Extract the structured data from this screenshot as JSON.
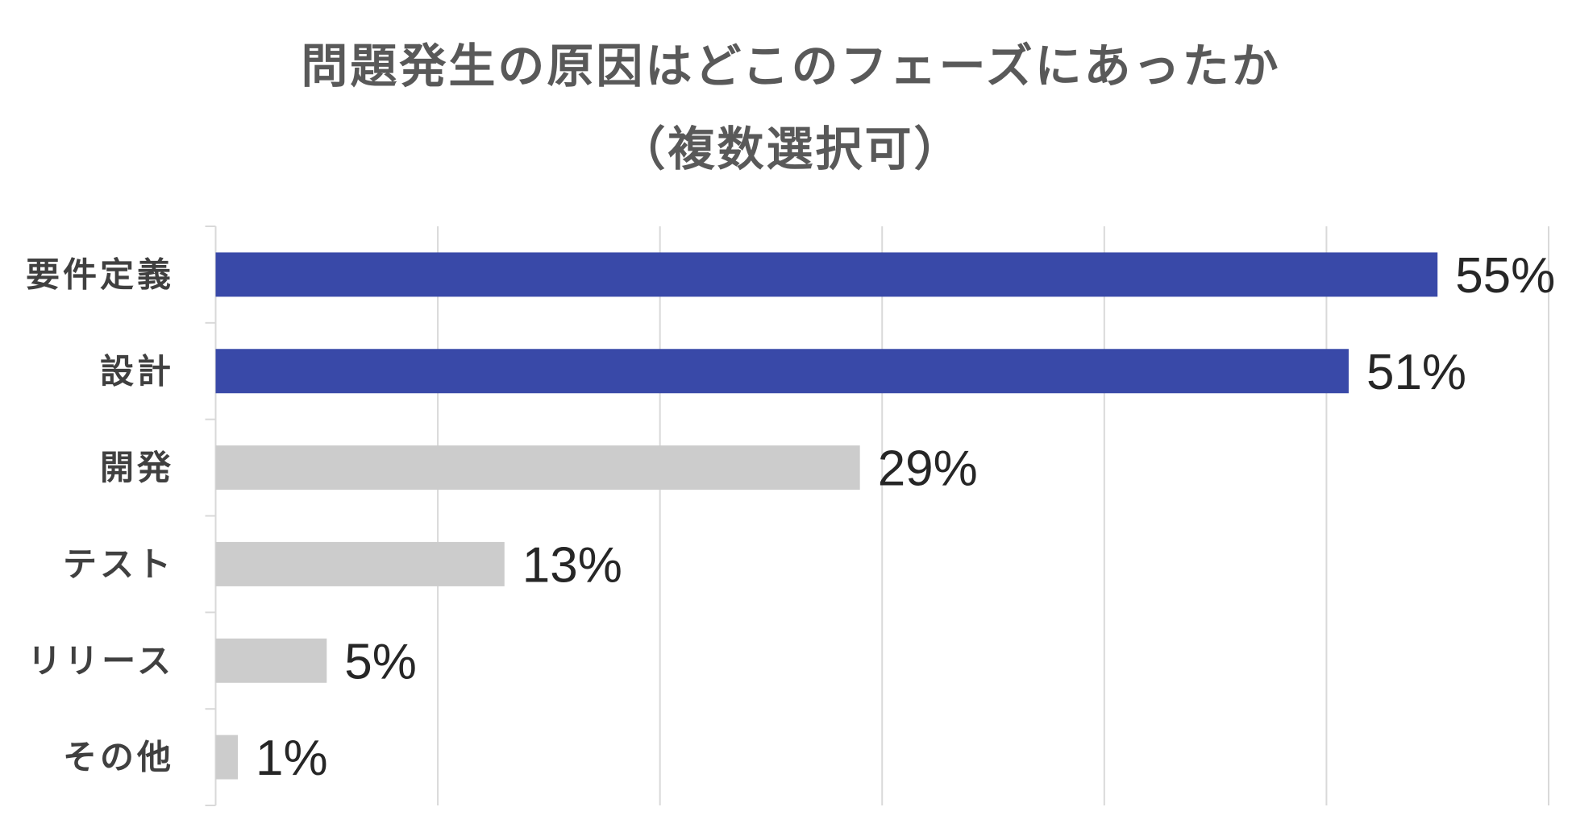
{
  "chart_data": {
    "type": "bar",
    "orientation": "horizontal",
    "title": "問題発生の原因はどこのフェーズにあったか",
    "subtitle": "（複数選択可）",
    "xlabel": "",
    "ylabel": "",
    "categories": [
      "要件定義",
      "設計",
      "開発",
      "テスト",
      "リリース",
      "その他"
    ],
    "values": [
      55,
      51,
      29,
      13,
      5,
      1
    ],
    "value_labels": [
      "55%",
      "51%",
      "29%",
      "13%",
      "5%",
      "1%"
    ],
    "xlim": [
      0,
      60
    ],
    "x_gridlines": [
      10,
      20,
      30,
      40,
      50,
      60
    ],
    "grid": true,
    "show_legend": false,
    "bar_colors": [
      "#3949a8",
      "#3949a8",
      "#cccccc",
      "#cccccc",
      "#cccccc",
      "#cccccc"
    ]
  },
  "colors": {
    "highlight": "#3949a8",
    "default_bar": "#cccccc",
    "title": "#595959",
    "category_label": "#404040",
    "value_label": "#262626",
    "gridline": "#d9d9d9"
  }
}
